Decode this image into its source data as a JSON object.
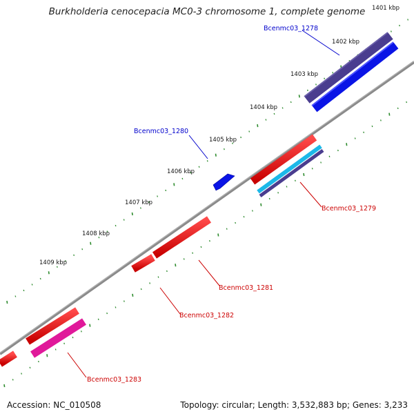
{
  "title": "Burkholderia cenocepacia MC0-3 chromosome 1, complete genome",
  "footer": {
    "accession": "Accession: NC_010508",
    "summary": "Topology: circular; Length: 3,532,883 bp; Genes: 3,233"
  },
  "ticks": [
    {
      "label": "1401 kbp"
    },
    {
      "label": "1402 kbp"
    },
    {
      "label": "1403 kbp"
    },
    {
      "label": "1404 kbp"
    },
    {
      "label": "1405 kbp"
    },
    {
      "label": "1406 kbp"
    },
    {
      "label": "1407 kbp"
    },
    {
      "label": "1408 kbp"
    },
    {
      "label": "1409 kbp"
    }
  ],
  "genes": [
    {
      "name": "Bcenmc03_1278",
      "color": "#0000cc"
    },
    {
      "name": "Bcenmc03_1279",
      "color": "#cc0000"
    },
    {
      "name": "Bcenmc03_1280",
      "color": "#0000cc"
    },
    {
      "name": "Bcenmc03_1281",
      "color": "#cc0000"
    },
    {
      "name": "Bcenmc03_1282",
      "color": "#cc0000"
    },
    {
      "name": "Bcenmc03_1283",
      "color": "#cc0000"
    }
  ],
  "colors": {
    "backbone": "#7a7a7a",
    "tick": "#2e8b2e",
    "forward_gene": "#0a14e6",
    "forward_feature": "#4a3d8f",
    "reverse_gene": "#ee1010",
    "reverse_feature_cyan": "#1cb8e8",
    "reverse_feature_purple": "#4a3d8f",
    "reverse_feature_pink": "#e0199a",
    "label_blue": "#0000cc",
    "label_red": "#cc0000"
  }
}
